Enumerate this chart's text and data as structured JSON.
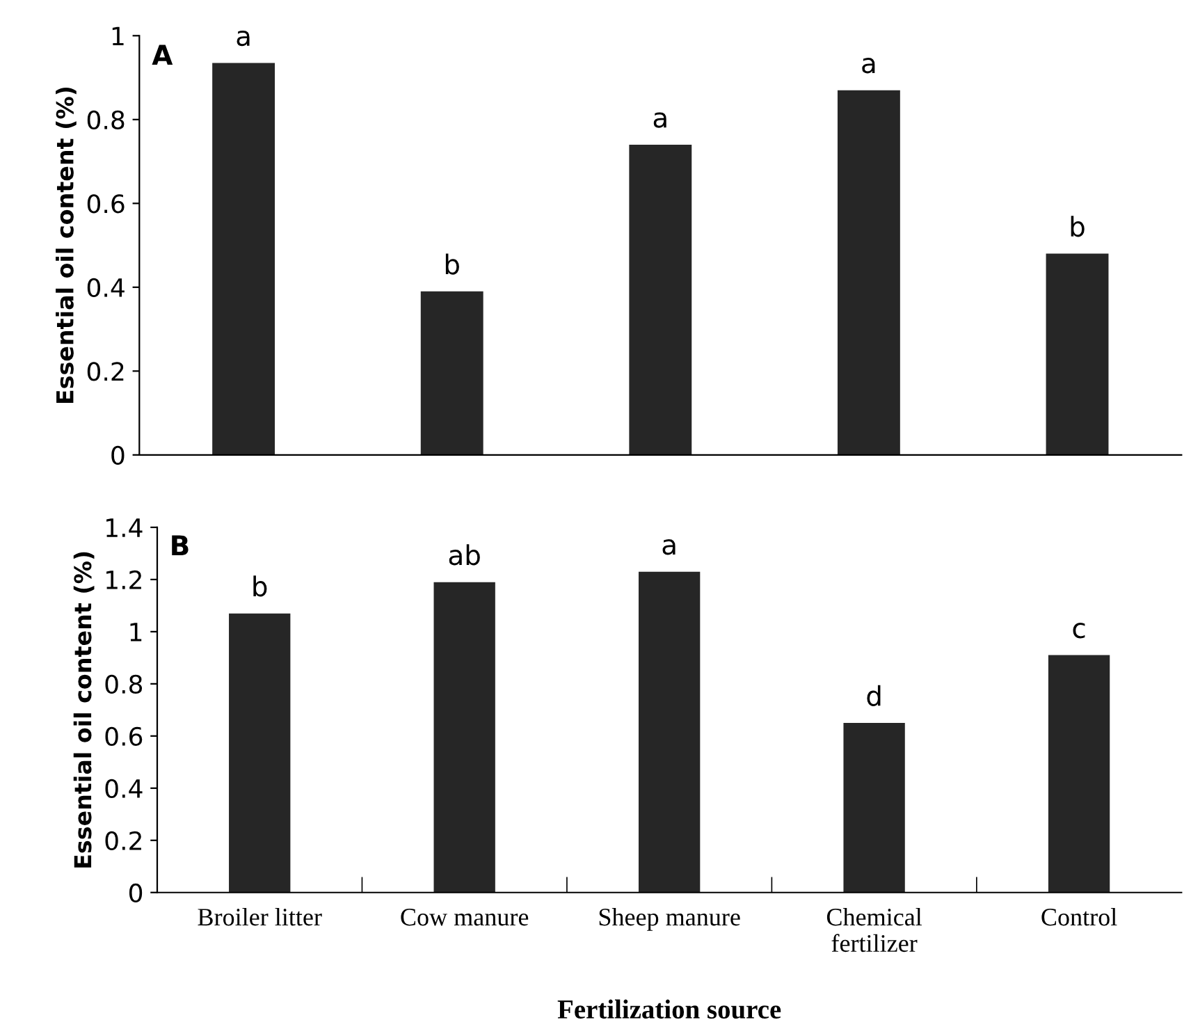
{
  "chart_data": [
    {
      "type": "bar",
      "title": "A",
      "ylabel": "Essential oil content (%)",
      "categories": [
        "Broiler litter",
        "Cow manure",
        "Sheep manure",
        "Chemical fertilizer",
        "Control"
      ],
      "values": [
        0.935,
        0.39,
        0.74,
        0.87,
        0.48
      ],
      "color": "#262626",
      "ylim": [
        0,
        1
      ],
      "yticks": [
        0,
        0.2,
        0.4,
        0.6,
        0.8,
        1
      ],
      "grid": false,
      "tick_labels": "y",
      "annotations": [
        {
          "text": "a",
          "x": "Broiler litter",
          "y": 0.935
        },
        {
          "text": "b",
          "x": "Cow manure",
          "y": 0.39
        },
        {
          "text": "a",
          "x": "Sheep manure",
          "y": 0.74
        },
        {
          "text": "a",
          "x": "Chemical fertilizer",
          "y": 0.87
        },
        {
          "text": "b",
          "x": "Control",
          "y": 0.48
        }
      ]
    },
    {
      "type": "bar",
      "title": "B",
      "ylabel": "Essential oil content (%)",
      "xlabel": "Fertilization source",
      "categories": [
        "Broiler litter",
        "Cow manure",
        "Sheep manure",
        "Chemical fertilizer",
        "Control"
      ],
      "values": [
        1.07,
        1.19,
        1.23,
        0.65,
        0.91
      ],
      "color": "#262626",
      "ylim": [
        0,
        1.4
      ],
      "yticks": [
        0,
        0.2,
        0.4,
        0.6,
        0.8,
        1,
        1.2,
        1.4
      ],
      "grid": false,
      "annotations": [
        {
          "text": "b",
          "x": "Broiler litter",
          "y": 1.07
        },
        {
          "text": "ab",
          "x": "Cow manure",
          "y": 1.19
        },
        {
          "text": "a",
          "x": "Sheep manure",
          "y": 1.23
        },
        {
          "text": "d",
          "x": "Chemical fertilizer",
          "y": 0.65
        },
        {
          "text": "c",
          "x": "Control",
          "y": 0.91
        }
      ]
    }
  ]
}
